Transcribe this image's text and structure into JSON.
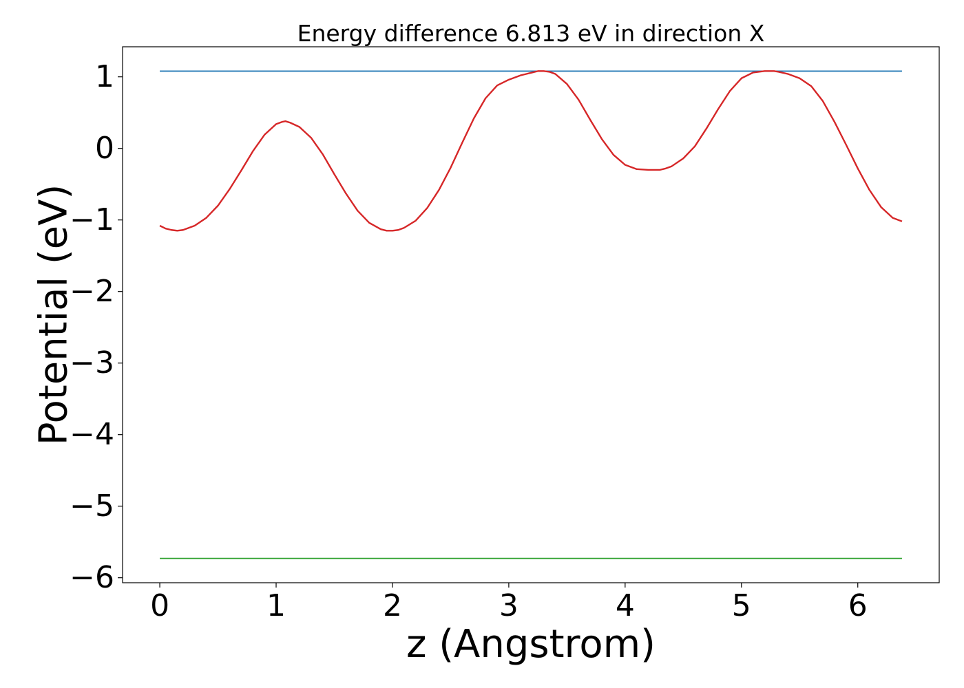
{
  "chart_data": {
    "type": "line",
    "title": "Energy difference 6.813 eV in direction X",
    "xlabel": "z (Angstrom)",
    "ylabel": "Potential (eV)",
    "xlim": [
      -0.32,
      6.7
    ],
    "ylim": [
      -6.07,
      1.42
    ],
    "x_ticks": [
      0,
      1,
      2,
      3,
      4,
      5,
      6
    ],
    "x_tick_labels": [
      "0",
      "1",
      "2",
      "3",
      "4",
      "5",
      "6"
    ],
    "y_ticks": [
      1,
      0,
      -1,
      -2,
      -3,
      -4,
      -5,
      -6
    ],
    "y_tick_labels": [
      "1",
      "0",
      "−1",
      "−2",
      "−3",
      "−4",
      "−5",
      "−6"
    ],
    "grid": false,
    "series": [
      {
        "color": "#1f77b4",
        "x": [
          0,
          6.38
        ],
        "y": [
          1.08,
          1.08
        ]
      },
      {
        "color": "#2ca02c",
        "x": [
          0,
          6.38
        ],
        "y": [
          -5.73,
          -5.73
        ]
      },
      {
        "color": "#d62728",
        "x": [
          0,
          0.05,
          0.1,
          0.15,
          0.2,
          0.3,
          0.4,
          0.5,
          0.6,
          0.7,
          0.8,
          0.9,
          1.0,
          1.05,
          1.08,
          1.12,
          1.2,
          1.3,
          1.4,
          1.5,
          1.6,
          1.7,
          1.8,
          1.9,
          1.95,
          2.0,
          2.05,
          2.1,
          2.2,
          2.3,
          2.4,
          2.5,
          2.6,
          2.7,
          2.8,
          2.9,
          3.0,
          3.1,
          3.2,
          3.25,
          3.3,
          3.35,
          3.4,
          3.5,
          3.6,
          3.7,
          3.8,
          3.9,
          4.0,
          4.1,
          4.2,
          4.25,
          4.3,
          4.35,
          4.4,
          4.5,
          4.6,
          4.7,
          4.8,
          4.9,
          5.0,
          5.1,
          5.2,
          5.25,
          5.28,
          5.32,
          5.4,
          5.5,
          5.6,
          5.7,
          5.8,
          5.9,
          6.0,
          6.1,
          6.2,
          6.3,
          6.38
        ],
        "y": [
          -1.08,
          -1.12,
          -1.14,
          -1.15,
          -1.14,
          -1.08,
          -0.97,
          -0.8,
          -0.57,
          -0.31,
          -0.04,
          0.19,
          0.34,
          0.37,
          0.38,
          0.36,
          0.3,
          0.15,
          -0.08,
          -0.36,
          -0.63,
          -0.87,
          -1.04,
          -1.13,
          -1.15,
          -1.15,
          -1.14,
          -1.11,
          -1.01,
          -0.83,
          -0.58,
          -0.27,
          0.08,
          0.42,
          0.7,
          0.88,
          0.96,
          1.02,
          1.06,
          1.08,
          1.08,
          1.07,
          1.04,
          0.9,
          0.68,
          0.4,
          0.13,
          -0.09,
          -0.23,
          -0.29,
          -0.3,
          -0.3,
          -0.3,
          -0.28,
          -0.25,
          -0.14,
          0.03,
          0.28,
          0.55,
          0.8,
          0.98,
          1.06,
          1.08,
          1.08,
          1.08,
          1.07,
          1.04,
          0.98,
          0.87,
          0.66,
          0.37,
          0.05,
          -0.28,
          -0.58,
          -0.82,
          -0.97,
          -1.02
        ]
      }
    ]
  }
}
